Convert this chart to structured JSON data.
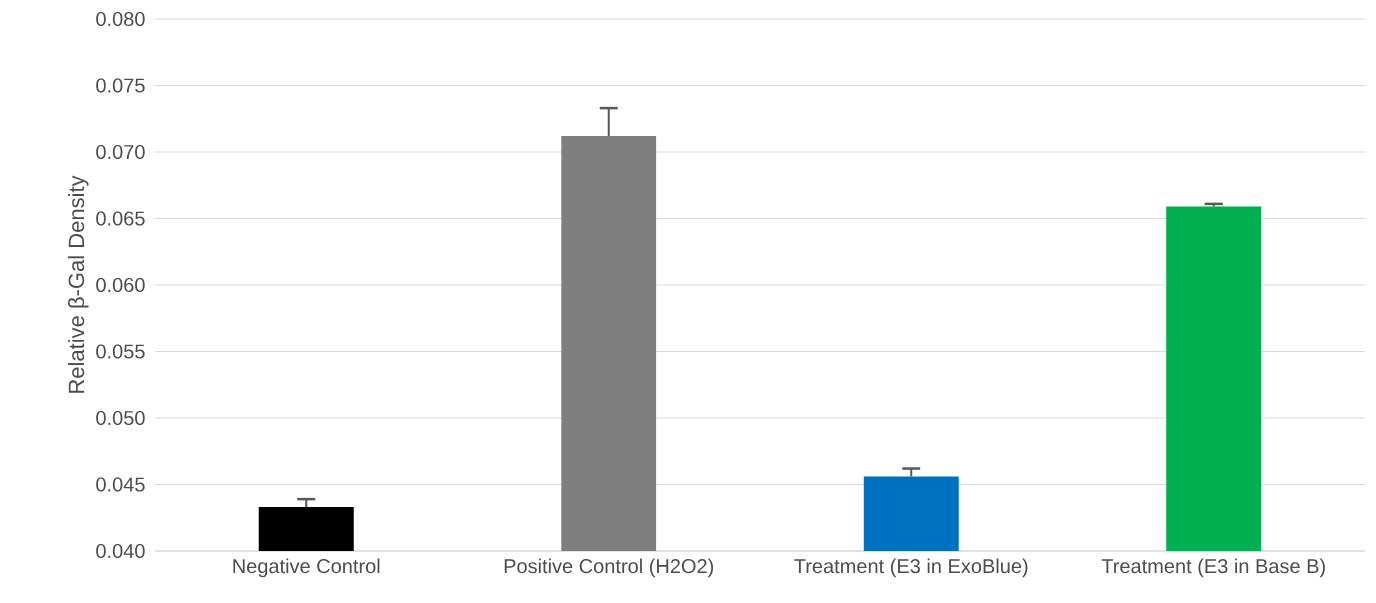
{
  "chart_data": {
    "type": "bar",
    "ylabel": "Relative β-Gal Density",
    "categories": [
      "Negative Control",
      "Positive Control (H2O2)",
      "Treatment (E3 in ExoBlue)",
      "Treatment (E3 in Base B)"
    ],
    "values": [
      0.0433,
      0.0712,
      0.0456,
      0.0659
    ],
    "colors": [
      "#000000",
      "#7f7f7f",
      "#0070c0",
      "#00b050"
    ],
    "errors": [
      0.0006,
      0.0021,
      0.0006,
      0.0002
    ],
    "ylim": [
      0.04,
      0.08
    ],
    "yticks": [
      {
        "value": 0.04,
        "label": "0.040"
      },
      {
        "value": 0.045,
        "label": "0.045"
      },
      {
        "value": 0.05,
        "label": "0.050"
      },
      {
        "value": 0.055,
        "label": "0.055"
      },
      {
        "value": 0.06,
        "label": "0.060"
      },
      {
        "value": 0.065,
        "label": "0.065"
      },
      {
        "value": 0.07,
        "label": "0.070"
      },
      {
        "value": 0.075,
        "label": "0.075"
      },
      {
        "value": 0.08,
        "label": "0.080"
      }
    ],
    "grid": "y"
  }
}
